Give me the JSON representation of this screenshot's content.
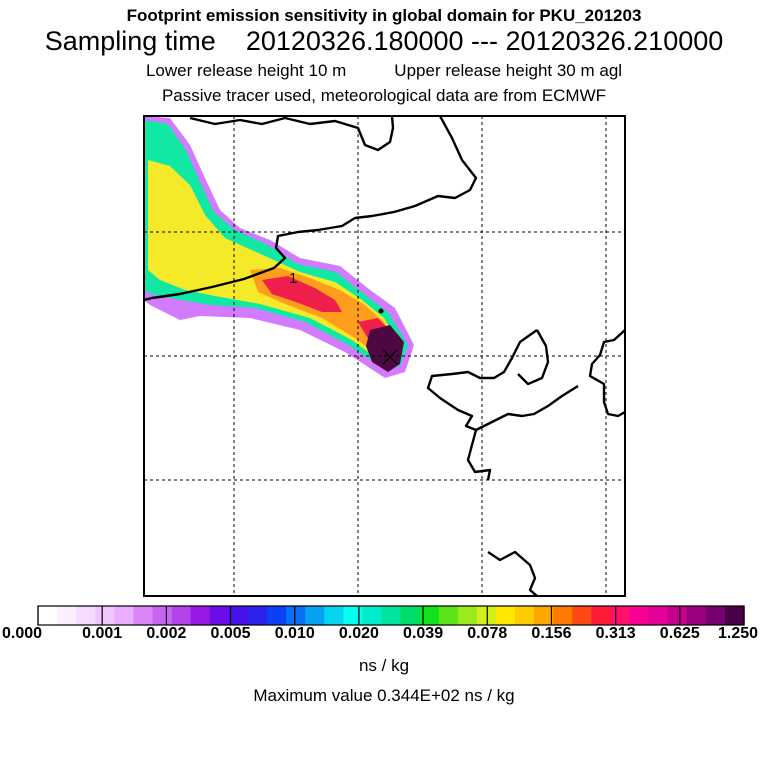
{
  "header": {
    "title": "Footprint emission sensitivity in global domain for PKU_201203",
    "sampling_label": "Sampling time",
    "sampling_range": "20120326.180000 --- 20120326.210000",
    "lower_release": "Lower release height   10 m",
    "upper_release": "Upper release height   30 m    agl",
    "subtitle": "Passive tracer used, meteorological data are from ECMWF"
  },
  "map": {
    "point_label": "1",
    "colors": {
      "frame": "#000000",
      "coast": "#000000",
      "grid": "#000000",
      "plume_outer": "#d27bff",
      "plume_mid": "#11e8a3",
      "plume_yellow": "#f4ea2a",
      "plume_orange": "#ff9e1c",
      "plume_core": "#ee1f4c",
      "plume_max": "#4d0842"
    }
  },
  "colorbar": {
    "colors": [
      "#ffffff",
      "#fcedff",
      "#f7dbff",
      "#f1c6ff",
      "#ebadff",
      "#d985f7",
      "#c865f0",
      "#b543ea",
      "#9818e6",
      "#6c0de8",
      "#4a10ec",
      "#2d21f0",
      "#0b40f5",
      "#0770f5",
      "#07a2f2",
      "#06d3f0",
      "#05fff0",
      "#00eacc",
      "#00e39f",
      "#00dc6c",
      "#12e11e",
      "#5be516",
      "#9bea1c",
      "#d2ee1c",
      "#ffe800",
      "#ffcc00",
      "#ffa700",
      "#ff7a00",
      "#fd4a14",
      "#ff1c35",
      "#ff0e6c",
      "#f70094",
      "#e5009a",
      "#c5008c",
      "#9c0080",
      "#78006e",
      "#4a0047"
    ],
    "tick_labels": [
      "0.000",
      "0.001",
      "0.002",
      "0.005",
      "0.010",
      "0.020",
      "0.039",
      "0.078",
      "0.156",
      "0.313",
      "0.625",
      "1.250"
    ],
    "units": "ns / kg",
    "max_value_text": "Maximum value  0.344E+02 ns / kg"
  }
}
